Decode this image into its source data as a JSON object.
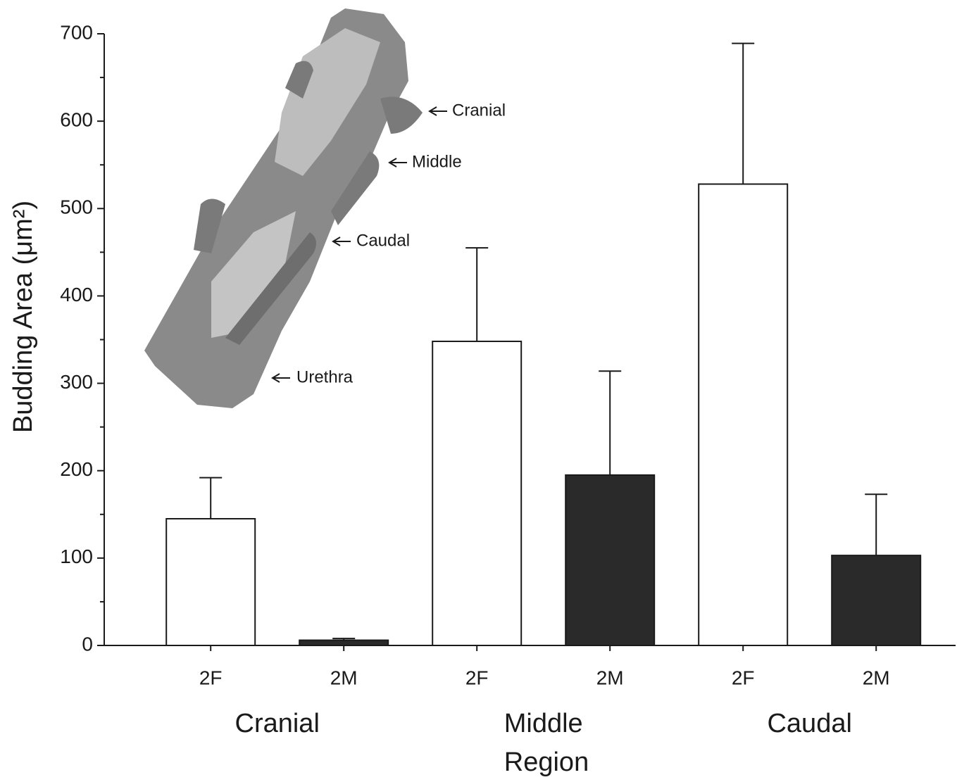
{
  "chart_data": {
    "type": "bar",
    "y_label": "Budding Area (μm²)",
    "x_label": "Region",
    "categories": [
      "2F",
      "2M",
      "2F",
      "2M",
      "2F",
      "2M"
    ],
    "groups": [
      "Cranial",
      "Middle",
      "Caudal"
    ],
    "values": [
      145,
      6,
      348,
      195,
      528,
      103
    ],
    "errors": [
      47,
      2,
      107,
      119,
      161,
      70
    ],
    "colors": [
      "#ffffff",
      "#2a2a2a",
      "#ffffff",
      "#2a2a2a",
      "#ffffff",
      "#2a2a2a"
    ],
    "ylim": [
      0,
      700
    ],
    "yticks": [
      0,
      100,
      200,
      300,
      400,
      500,
      600,
      700
    ],
    "yticks_minor": [
      50,
      150,
      250,
      350,
      450,
      550,
      650
    ],
    "annotations": [
      "Cranial",
      "Middle",
      "Caudal",
      "Urethra"
    ]
  }
}
